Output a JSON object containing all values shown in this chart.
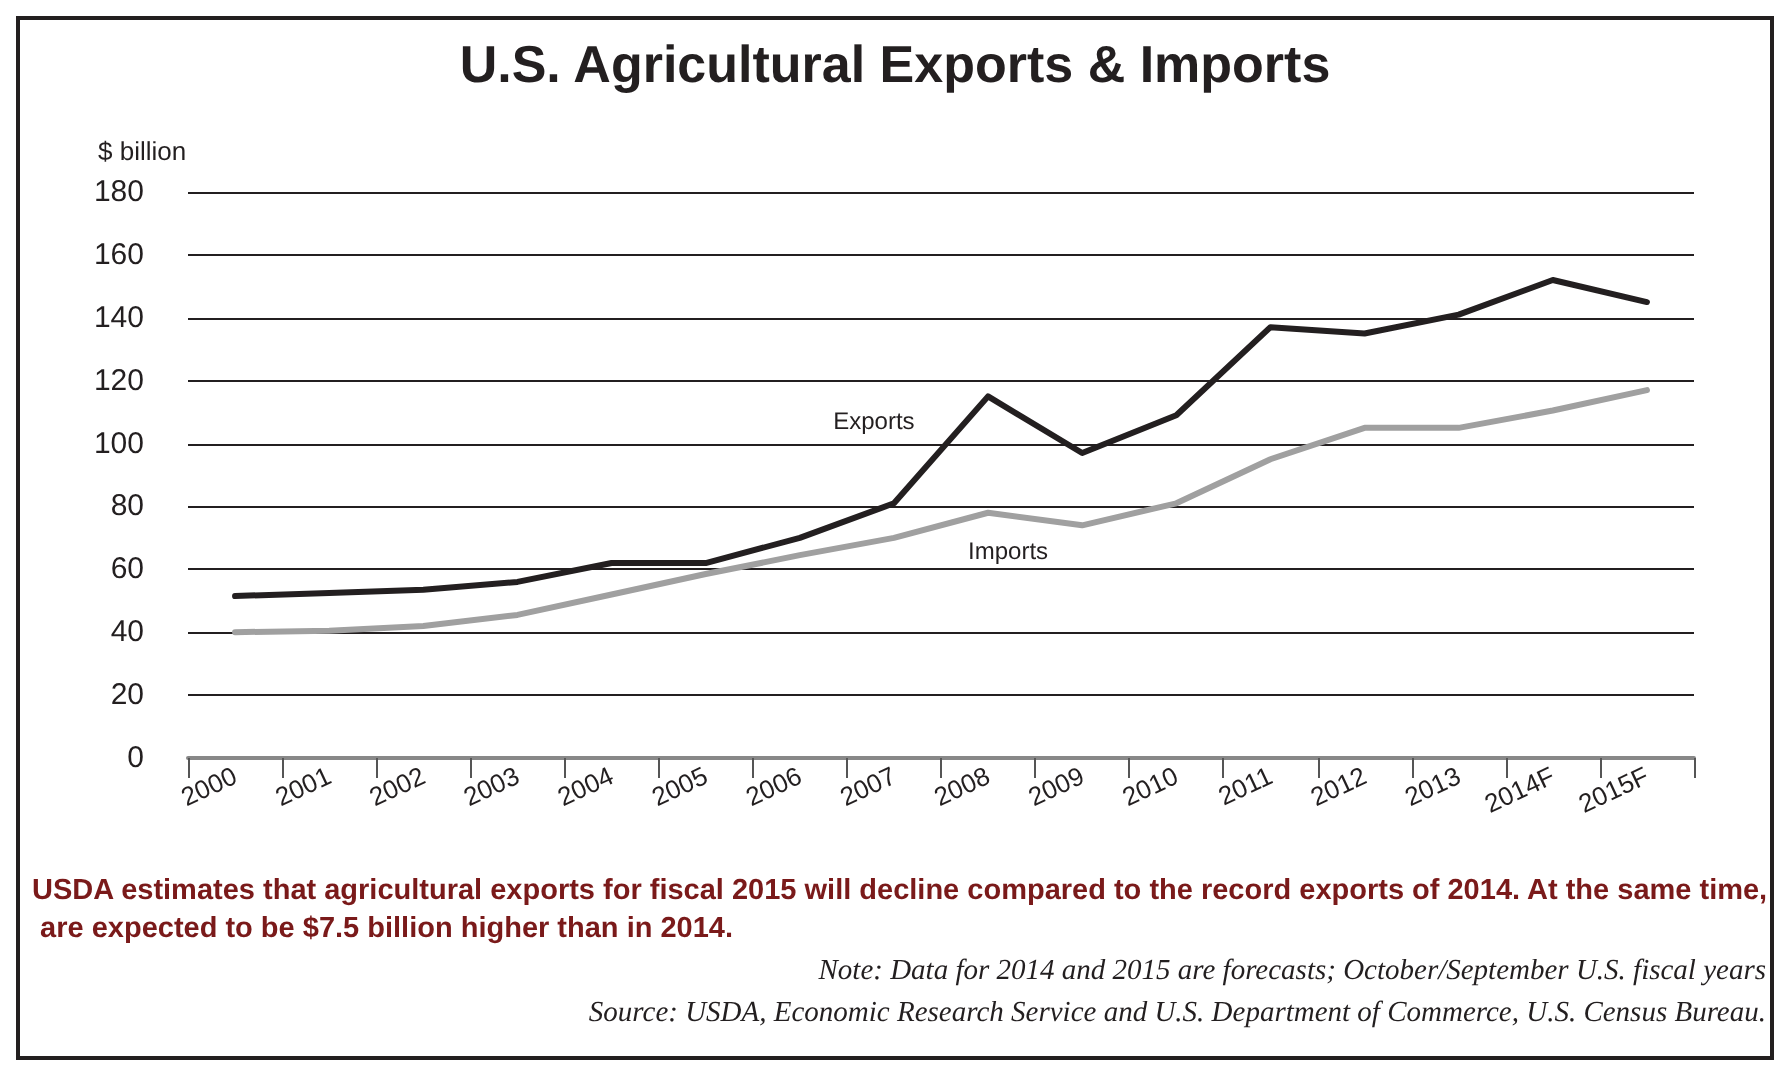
{
  "chart_data": {
    "type": "line",
    "title": "U.S. Agricultural Exports & Imports",
    "ylabel": "$ billion",
    "categories": [
      "2000",
      "2001",
      "2002",
      "2003",
      "2004",
      "2005",
      "2006",
      "2007",
      "2008",
      "2009",
      "2010",
      "2011",
      "2012",
      "2013",
      "2014F",
      "2015F"
    ],
    "series": [
      {
        "name": "Exports",
        "color": "#231f20",
        "values": [
          51.5,
          52.5,
          53.5,
          56,
          62,
          62,
          70,
          81,
          115,
          97,
          109,
          137,
          135,
          141,
          152,
          145
        ]
      },
      {
        "name": "Imports",
        "color": "#a0a0a0",
        "values": [
          40,
          40.5,
          42,
          45.5,
          52,
          58.5,
          64.5,
          70,
          78,
          74,
          81,
          95,
          105,
          105,
          110.5,
          117
        ]
      }
    ],
    "ylim": [
      0,
      180
    ],
    "yticks": [
      0,
      20,
      40,
      60,
      80,
      100,
      120,
      140,
      160,
      180
    ],
    "grid": "y",
    "marker": "none",
    "line_style": "solid",
    "annotations": [
      "USDA estimates that agricultural exports for fiscal 2015 will decline compared to the record exports of 2014. At the same time, are expected to be $7.5 billion higher than in 2014.",
      "Note: Data for 2014 and 2015 are forecasts; October/September U.S. fiscal years",
      "Source: USDA, Economic Research Service and U.S. Department of Commerce, U.S. Census Bureau."
    ]
  }
}
